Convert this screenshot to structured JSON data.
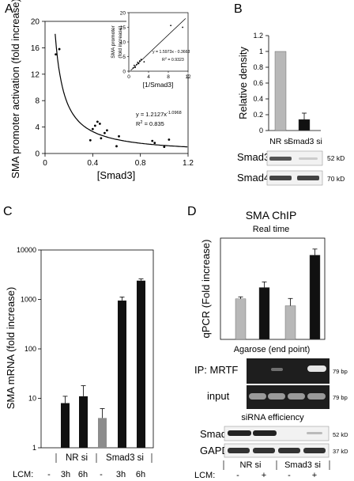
{
  "panels": {
    "A": "A",
    "B": "B",
    "C": "C",
    "D": "D"
  },
  "colors": {
    "light_bar": "#b8b8b8",
    "dark_bar": "#111111",
    "mid_bar": "#8c8c8c",
    "gel_bg": "#222222",
    "band": "#dcdcdc"
  },
  "chart_data": [
    {
      "panel": "A",
      "type": "scatter",
      "xlabel": "[Smad3]",
      "ylabel": "SMA promoter activation (fold increase)",
      "xlim": [
        0,
        1.2
      ],
      "ylim": [
        0,
        20
      ],
      "xticks": [
        "0",
        "0.4",
        "0.8",
        "1.2"
      ],
      "yticks": [
        "0",
        "4",
        "8",
        "12",
        "16",
        "20"
      ],
      "points": [
        [
          0.09,
          15.0
        ],
        [
          0.12,
          15.8
        ],
        [
          0.38,
          2.0
        ],
        [
          0.4,
          3.7
        ],
        [
          0.42,
          4.2
        ],
        [
          0.44,
          4.8
        ],
        [
          0.47,
          2.3
        ],
        [
          0.46,
          4.5
        ],
        [
          0.5,
          3.1
        ],
        [
          0.52,
          3.5
        ],
        [
          0.6,
          1.1
        ],
        [
          0.62,
          2.6
        ],
        [
          0.9,
          1.9
        ],
        [
          0.92,
          1.6
        ],
        [
          1.0,
          1.0
        ],
        [
          1.04,
          2.1
        ]
      ],
      "fit": {
        "a": 1.2127,
        "b": -1.0968
      },
      "equation": "y = 1.2127x",
      "equation_exp": "-1.0968",
      "r2": "R",
      "r2_rest": " = 0.835",
      "inset": {
        "type": "scatter",
        "xlabel": "[1/Smad3]",
        "ylabel": "SMA promoter (fold increase)",
        "xlim": [
          0,
          12
        ],
        "ylim": [
          0,
          20
        ],
        "xticks": [
          "0",
          "4",
          "8",
          "12"
        ],
        "yticks": [
          "0",
          "5",
          "10",
          "15",
          "20"
        ],
        "points": [
          [
            0.9,
            1.1
          ],
          [
            1.1,
            2.0
          ],
          [
            1.3,
            1.3
          ],
          [
            1.6,
            2.3
          ],
          [
            1.8,
            3.0
          ],
          [
            2.0,
            2.6
          ],
          [
            2.2,
            3.5
          ],
          [
            2.5,
            4.0
          ],
          [
            10.9,
            15.0
          ],
          [
            8.5,
            15.6
          ],
          [
            3.1,
            3.2
          ]
        ],
        "fit": {
          "slope": 1.5973,
          "intercept": -0.3663
        },
        "equation": "y = 1.5973x - 0.3663",
        "r2": "R",
        "r2_rest": " = 0.9323"
      }
    },
    {
      "panel": "B",
      "type": "bar",
      "ylabel": "Relative density",
      "categories": [
        "NR si",
        "Smad3 si"
      ],
      "values": [
        1.0,
        0.14
      ],
      "errors": [
        0.0,
        0.08
      ],
      "ylim": [
        0,
        1.2
      ],
      "yticks": [
        "0",
        "0.2",
        "0.4",
        "0.6",
        "0.8",
        "1",
        "1.2"
      ],
      "blots": [
        {
          "label": "Smad3",
          "kd": "52 kD"
        },
        {
          "label": "Smad4",
          "kd": "70 kD"
        }
      ]
    },
    {
      "panel": "C",
      "type": "bar",
      "log_scale": true,
      "ylabel": "SMA mRNA (fold increase)",
      "ylim": [
        1,
        10000
      ],
      "yticks": [
        "1",
        "10",
        "100",
        "1000",
        "10000"
      ],
      "lcm_label": "LCM:",
      "conditions": [
        "-",
        "3h",
        "6h",
        "-",
        "3h",
        "6h"
      ],
      "values": [
        null,
        8,
        11,
        4,
        950,
        2400
      ],
      "errors": [
        null,
        3,
        7,
        2.2,
        170,
        200
      ],
      "groups": [
        "NR si",
        "Smad3 si"
      ]
    },
    {
      "panel": "D",
      "type": "bar",
      "title": "SMA ChIP",
      "subtitle": "Real time",
      "ylabel": "qPCR (Fold increase)",
      "ylim": [
        0,
        2.5
      ],
      "values": [
        1.0,
        1.28,
        0.83,
        2.08
      ],
      "errors": [
        0.05,
        0.14,
        0.18,
        0.15
      ],
      "gels": {
        "agarose_title": "Agarose (end point)",
        "ip_label": "IP: MRTF",
        "input_label": "input",
        "bp": "79 bp",
        "sirna_title": "siRNA efficiency",
        "smad3_label": "Smad3",
        "smad3_kd": "52 kD",
        "gapdh_label": "GAPDH",
        "gapdh_kd": "37 kD"
      },
      "lcm_label": "LCM:",
      "conditions": [
        "-",
        "+",
        "-",
        "+"
      ],
      "groups": [
        "NR si",
        "Smad3 si"
      ]
    }
  ]
}
